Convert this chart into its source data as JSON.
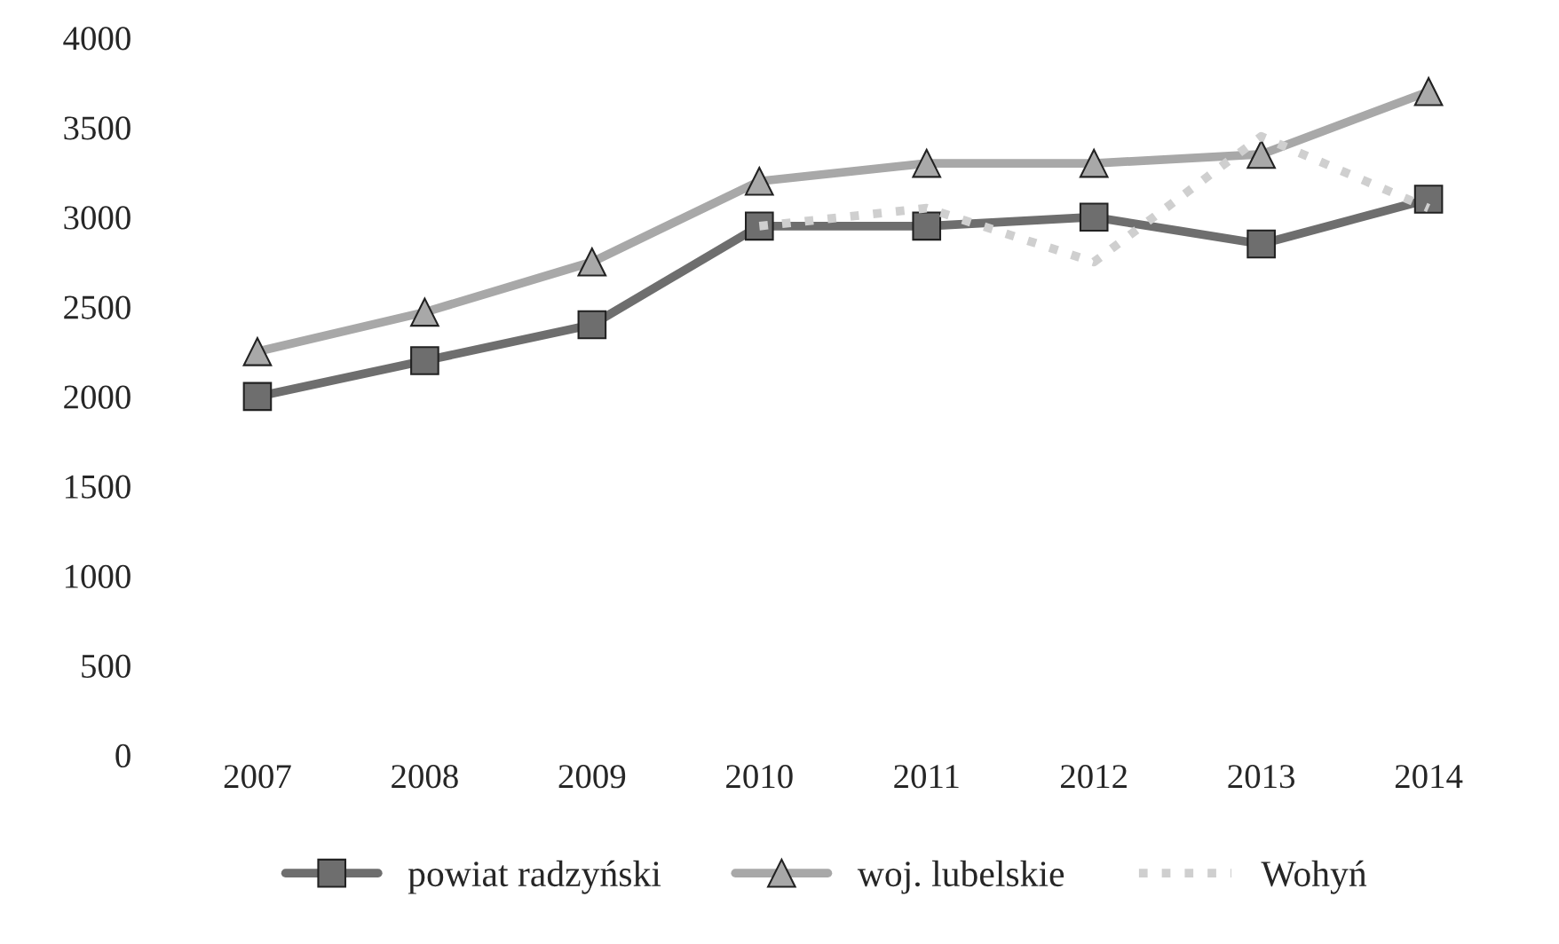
{
  "chart_data": {
    "type": "line",
    "categories": [
      "2007",
      "2008",
      "2009",
      "2010",
      "2011",
      "2012",
      "2013",
      "2014"
    ],
    "series": [
      {
        "name": "powiat radzyński",
        "color": "#6e6e6e",
        "marker": "square",
        "line_style": "solid",
        "values": [
          2000,
          2200,
          2400,
          2950,
          2950,
          3000,
          2850,
          3100
        ]
      },
      {
        "name": "woj. lubelskie",
        "color": "#a8a8a8",
        "marker": "triangle",
        "line_style": "solid",
        "values": [
          2250,
          2470,
          2750,
          3200,
          3300,
          3300,
          3350,
          3700
        ]
      },
      {
        "name": "Wohyń",
        "color": "#cfcfcf",
        "marker": "none",
        "line_style": "dotted",
        "values": [
          null,
          null,
          null,
          2950,
          3050,
          2750,
          3450,
          3050
        ]
      }
    ],
    "ylim": [
      0,
      4000
    ],
    "yticks": [
      0,
      500,
      1000,
      1500,
      2000,
      2500,
      3000,
      3500,
      4000
    ],
    "grid": false,
    "legend": "bottom"
  }
}
